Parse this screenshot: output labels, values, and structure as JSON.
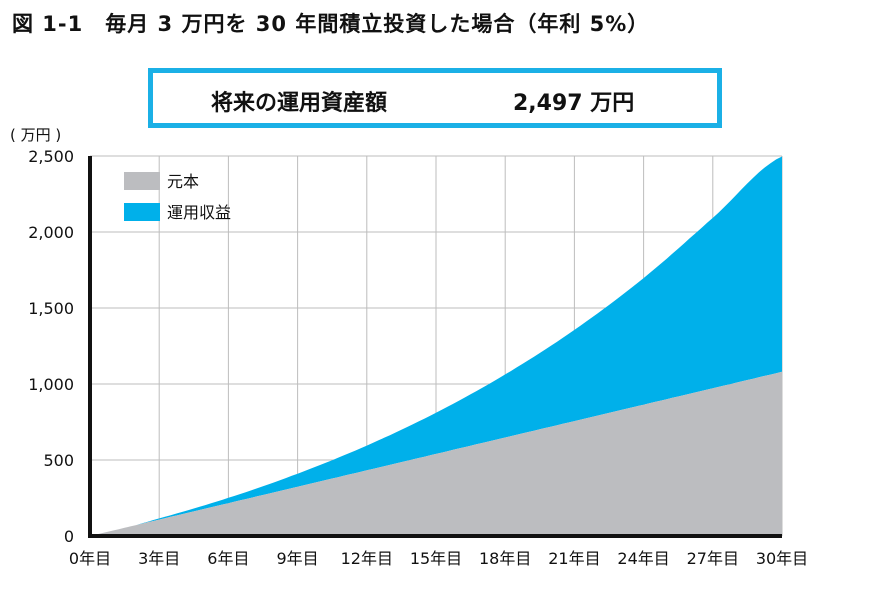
{
  "title": "図 1-1　毎月 3 万円を 30 年間積立投資した場合（年利 5%）",
  "result": {
    "label": "将来の運用資産額",
    "value": "2,497 万円"
  },
  "colors": {
    "principal": "#bcbdc0",
    "gain": "#00b0ea",
    "box_border": "#1bb0e6"
  },
  "chart_data": {
    "type": "area",
    "stacked": true,
    "ylabel": "( 万円 )",
    "ylim": [
      0,
      2500
    ],
    "xlim": [
      0,
      30
    ],
    "yticks": [
      0,
      500,
      1000,
      1500,
      2000,
      2500
    ],
    "ytick_labels": [
      "0",
      "500",
      "1,000",
      "1,500",
      "2,000",
      "2,500"
    ],
    "xticks": [
      0,
      3,
      6,
      9,
      12,
      15,
      18,
      21,
      24,
      27,
      30
    ],
    "xtick_labels": [
      "0年目",
      "3年目",
      "6年目",
      "9年目",
      "12年目",
      "15年目",
      "18年目",
      "21年目",
      "24年目",
      "27年目",
      "30年目"
    ],
    "grid": true,
    "legend_position": "top-left",
    "x": [
      0,
      3,
      6,
      9,
      12,
      15,
      18,
      21,
      24,
      27,
      30
    ],
    "series": [
      {
        "name": "元本",
        "values": [
          0,
          108,
          216,
          324,
          432,
          540,
          648,
          756,
          864,
          972,
          1080
        ]
      },
      {
        "name": "運用収益",
        "values": [
          0,
          8,
          35,
          86,
          163,
          271,
          415,
          600,
          833,
          1121,
          1417
        ]
      }
    ],
    "totals": [
      0,
      116,
      251,
      410,
      595,
      811,
      1063,
      1356,
      1697,
      2093,
      2497
    ]
  }
}
